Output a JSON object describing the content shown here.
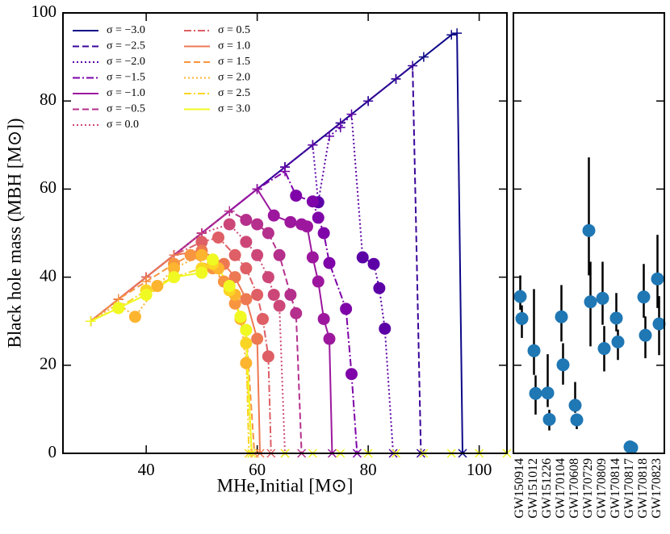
{
  "chart_data": [
    {
      "type": "line",
      "xlabel": "MHe,Initial [M⊙]",
      "ylabel": "Black hole mass (MBH [M⊙])",
      "xlim": [
        25,
        105
      ],
      "xticks": [
        40,
        60,
        80,
        100
      ],
      "ylim": [
        0,
        100
      ],
      "yticks": [
        0,
        20,
        40,
        60,
        80,
        100
      ],
      "legend": "upper left",
      "series": [
        {
          "name": "σ = −3.0",
          "color": "#0d0887",
          "linestyle": "solid",
          "x": [
            30,
            35,
            40,
            45,
            50,
            55,
            60,
            65,
            70,
            75,
            80,
            85,
            90,
            95,
            96,
            97
          ],
          "values": [
            30,
            35,
            40,
            45,
            50,
            55,
            60,
            65,
            70,
            75,
            80,
            85,
            90,
            95,
            95.4,
            0
          ]
        },
        {
          "name": "σ = −2.5",
          "color": "#3a049a",
          "linestyle": "dashed",
          "x": [
            30,
            35,
            40,
            45,
            50,
            55,
            60,
            65,
            70,
            75,
            80,
            85,
            88,
            89.5
          ],
          "values": [
            30,
            35,
            40,
            45,
            50,
            55,
            60,
            65,
            70,
            75,
            80,
            85,
            88,
            0
          ]
        },
        {
          "name": "σ = −2.0",
          "color": "#5c01a6",
          "linestyle": "dotted",
          "x": [
            30,
            35,
            40,
            45,
            50,
            55,
            60,
            65,
            70,
            71,
            73,
            75,
            77,
            79,
            81,
            82,
            83,
            84.5
          ],
          "values": [
            30,
            35,
            40,
            45,
            50,
            55,
            60,
            65,
            70,
            57,
            72,
            74,
            77,
            44.5,
            43,
            37.5,
            28.3,
            0
          ]
        },
        {
          "name": "σ = −1.5",
          "color": "#7e03a8",
          "linestyle": "dashdot",
          "x": [
            30,
            35,
            40,
            45,
            50,
            55,
            60,
            65,
            67,
            70,
            71,
            72,
            73,
            76,
            77,
            78
          ],
          "values": [
            30,
            35,
            40,
            45,
            50,
            55,
            60,
            64,
            58.5,
            57.2,
            53.5,
            50,
            43.2,
            32.8,
            18,
            0
          ]
        },
        {
          "name": "σ = −1.0",
          "color": "#9c179e",
          "linestyle": "solid",
          "x": [
            30,
            35,
            40,
            45,
            50,
            55,
            60,
            63,
            66,
            68,
            69,
            70,
            71,
            72,
            73,
            73.5
          ],
          "values": [
            30,
            35,
            40,
            45,
            50,
            55,
            60,
            54,
            52.5,
            52,
            51.5,
            44.5,
            39,
            30.5,
            26,
            0
          ]
        },
        {
          "name": "σ = −0.5",
          "color": "#b52f8c",
          "linestyle": "dashed",
          "x": [
            30,
            35,
            40,
            45,
            50,
            55,
            58,
            60,
            62,
            64,
            66,
            67,
            68
          ],
          "values": [
            30,
            35,
            40,
            45,
            50,
            55,
            53,
            52,
            50,
            45,
            36,
            31.8,
            0
          ]
        },
        {
          "name": "σ = 0.0",
          "color": "#cc4778",
          "linestyle": "dotted",
          "x": [
            30,
            35,
            40,
            45,
            50,
            55,
            58,
            60,
            62,
            63,
            64,
            65
          ],
          "values": [
            30,
            35,
            40,
            45,
            50,
            52,
            48,
            45,
            40,
            36,
            33.5,
            0
          ]
        },
        {
          "name": "σ = 0.5",
          "color": "#de5f65",
          "linestyle": "dashdot",
          "x": [
            30,
            35,
            40,
            45,
            50,
            53,
            56,
            58,
            60,
            61,
            62,
            62.5
          ],
          "values": [
            30,
            35,
            40,
            45,
            48,
            49,
            45,
            42,
            36,
            30.5,
            22,
            0
          ]
        },
        {
          "name": "σ = 1.0",
          "color": "#ed7953",
          "linestyle": "solid",
          "x": [
            30,
            35,
            40,
            45,
            50,
            54,
            56,
            58,
            60,
            60.5
          ],
          "values": [
            30,
            35,
            40,
            45,
            46,
            43,
            40,
            35,
            26,
            0
          ]
        },
        {
          "name": "σ = 1.5",
          "color": "#f89540",
          "linestyle": "dashed",
          "x": [
            30,
            35,
            40,
            45,
            48,
            52,
            54,
            56,
            58,
            59.5
          ],
          "values": [
            30,
            35,
            39,
            43,
            45,
            42,
            39,
            34,
            28,
            0
          ]
        },
        {
          "name": "σ = 2.0",
          "color": "#fdb42f",
          "linestyle": "dotted",
          "x": [
            30,
            35,
            38,
            42,
            45,
            50,
            53,
            56,
            57,
            58,
            59
          ],
          "values": [
            30,
            34,
            31,
            38,
            42,
            45,
            42,
            36,
            30.5,
            20.5,
            0
          ]
        },
        {
          "name": "σ = 2.5",
          "color": "#fbd524",
          "linestyle": "dashdot",
          "x": [
            30,
            35,
            40,
            45,
            50,
            52,
            55,
            57,
            58,
            58.5
          ],
          "values": [
            30,
            33,
            37,
            40,
            42,
            43,
            37,
            31,
            25,
            0
          ]
        },
        {
          "name": "σ = 3.0",
          "color": "#f0f921",
          "linestyle": "solid",
          "x": [
            30,
            35,
            40,
            45,
            50,
            52,
            55,
            57,
            58,
            59,
            65,
            70,
            75,
            80,
            85,
            90,
            95,
            100,
            105
          ],
          "values": [
            30,
            33,
            36,
            40,
            41,
            44,
            38,
            31,
            28,
            0,
            0,
            0,
            0,
            0,
            0,
            0,
            0,
            0,
            0
          ]
        }
      ]
    },
    {
      "type": "errorbar",
      "ylim": [
        0,
        100
      ],
      "categories": [
        "GW150914",
        "GW151012",
        "GW151226",
        "GW170104",
        "GW170608",
        "GW170729",
        "GW170809",
        "GW170814",
        "GW170817",
        "GW170818",
        "GW170823"
      ],
      "series": [
        {
          "color": "#1f77b4",
          "values": [
            35.6,
            23.3,
            13.7,
            31.0,
            10.9,
            50.6,
            35.2,
            30.7,
            1.46,
            35.5,
            39.6
          ],
          "errors_low": [
            3.0,
            5.5,
            3.2,
            5.6,
            1.7,
            10.2,
            6.0,
            3.0,
            0.1,
            4.7,
            6.6
          ],
          "errors_high": [
            4.8,
            14.0,
            8.8,
            7.2,
            5.3,
            16.6,
            8.3,
            5.7,
            0.1,
            7.5,
            10.0
          ]
        },
        {
          "color": "#1f77b4",
          "values": [
            30.6,
            13.6,
            7.7,
            20.1,
            7.6,
            34.4,
            23.8,
            25.3,
            1.27,
            26.8,
            29.4
          ],
          "errors_low": [
            4.4,
            4.8,
            2.5,
            4.5,
            2.1,
            10.1,
            5.2,
            4.1,
            0.1,
            5.2,
            7.1
          ],
          "errors_high": [
            3.0,
            4.1,
            2.2,
            4.9,
            1.3,
            9.1,
            5.1,
            2.8,
            0.1,
            4.3,
            6.3
          ]
        }
      ]
    }
  ]
}
